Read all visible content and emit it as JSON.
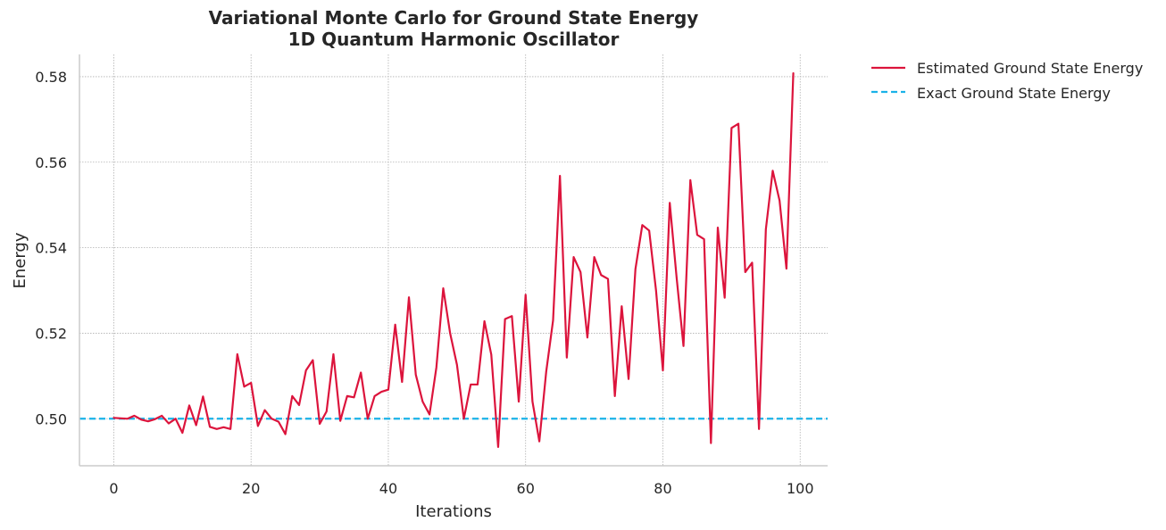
{
  "chart_data": {
    "type": "line",
    "title_line1": "Variational Monte Carlo for Ground State Energy",
    "title_line2": "1D Quantum Harmonic Oscillator",
    "xlabel": "Iterations",
    "ylabel": "Energy",
    "xlim": [
      -5,
      104
    ],
    "ylim": [
      0.489,
      0.5852
    ],
    "xticks": [
      0,
      20,
      40,
      60,
      80,
      100
    ],
    "xtick_labels": [
      "0",
      "20",
      "40",
      "60",
      "80",
      "100"
    ],
    "yticks": [
      0.5,
      0.52,
      0.54,
      0.56,
      0.58
    ],
    "ytick_labels": [
      "0.50",
      "0.52",
      "0.54",
      "0.56",
      "0.58"
    ],
    "grid": true,
    "legend_position": "outside-upper-right",
    "series": [
      {
        "name": "Estimated Ground State Energy",
        "color": "#dc143c",
        "style": "solid",
        "x": [
          0,
          1,
          2,
          3,
          4,
          5,
          6,
          7,
          8,
          9,
          10,
          11,
          12,
          13,
          14,
          15,
          16,
          17,
          18,
          19,
          20,
          21,
          22,
          23,
          24,
          25,
          26,
          27,
          28,
          29,
          30,
          31,
          32,
          33,
          34,
          35,
          36,
          37,
          38,
          39,
          40,
          41,
          42,
          43,
          44,
          45,
          46,
          47,
          48,
          49,
          50,
          51,
          52,
          53,
          54,
          55,
          56,
          57,
          58,
          59,
          60,
          61,
          62,
          63,
          64,
          65,
          66,
          67,
          68,
          69,
          70,
          71,
          72,
          73,
          74,
          75,
          76,
          77,
          78,
          79,
          80,
          81,
          82,
          83,
          84,
          85,
          86,
          87,
          88,
          89,
          90,
          91,
          92,
          93,
          94,
          95,
          96,
          97,
          98,
          99
        ],
        "values": [
          0.5002,
          0.5001,
          0.5,
          0.5007,
          0.4998,
          0.4994,
          0.4999,
          0.5007,
          0.4989,
          0.5,
          0.4967,
          0.5031,
          0.4985,
          0.5052,
          0.4981,
          0.4976,
          0.498,
          0.4976,
          0.5151,
          0.5075,
          0.5084,
          0.4983,
          0.502,
          0.5,
          0.4993,
          0.4964,
          0.5053,
          0.5032,
          0.5113,
          0.5137,
          0.4988,
          0.5017,
          0.5151,
          0.4995,
          0.5053,
          0.505,
          0.5108,
          0.5,
          0.5053,
          0.5063,
          0.5068,
          0.522,
          0.5086,
          0.5284,
          0.5103,
          0.504,
          0.501,
          0.512,
          0.5305,
          0.52,
          0.5126,
          0.5,
          0.508,
          0.508,
          0.5228,
          0.515,
          0.4934,
          0.5233,
          0.524,
          0.504,
          0.529,
          0.504,
          0.4947,
          0.511,
          0.523,
          0.5568,
          0.5143,
          0.5378,
          0.5343,
          0.519,
          0.5378,
          0.5336,
          0.5327,
          0.5053,
          0.5263,
          0.5093,
          0.535,
          0.5453,
          0.544,
          0.53,
          0.5113,
          0.5505,
          0.533,
          0.517,
          0.5558,
          0.543,
          0.542,
          0.4943,
          0.5447,
          0.5283,
          0.568,
          0.569,
          0.5343,
          0.5365,
          0.4976,
          0.5443,
          0.558,
          0.551,
          0.5351,
          0.5808
        ]
      },
      {
        "name": "Exact Ground State Energy",
        "color": "#1ab2e8",
        "style": "dashed",
        "value": 0.5
      }
    ]
  }
}
